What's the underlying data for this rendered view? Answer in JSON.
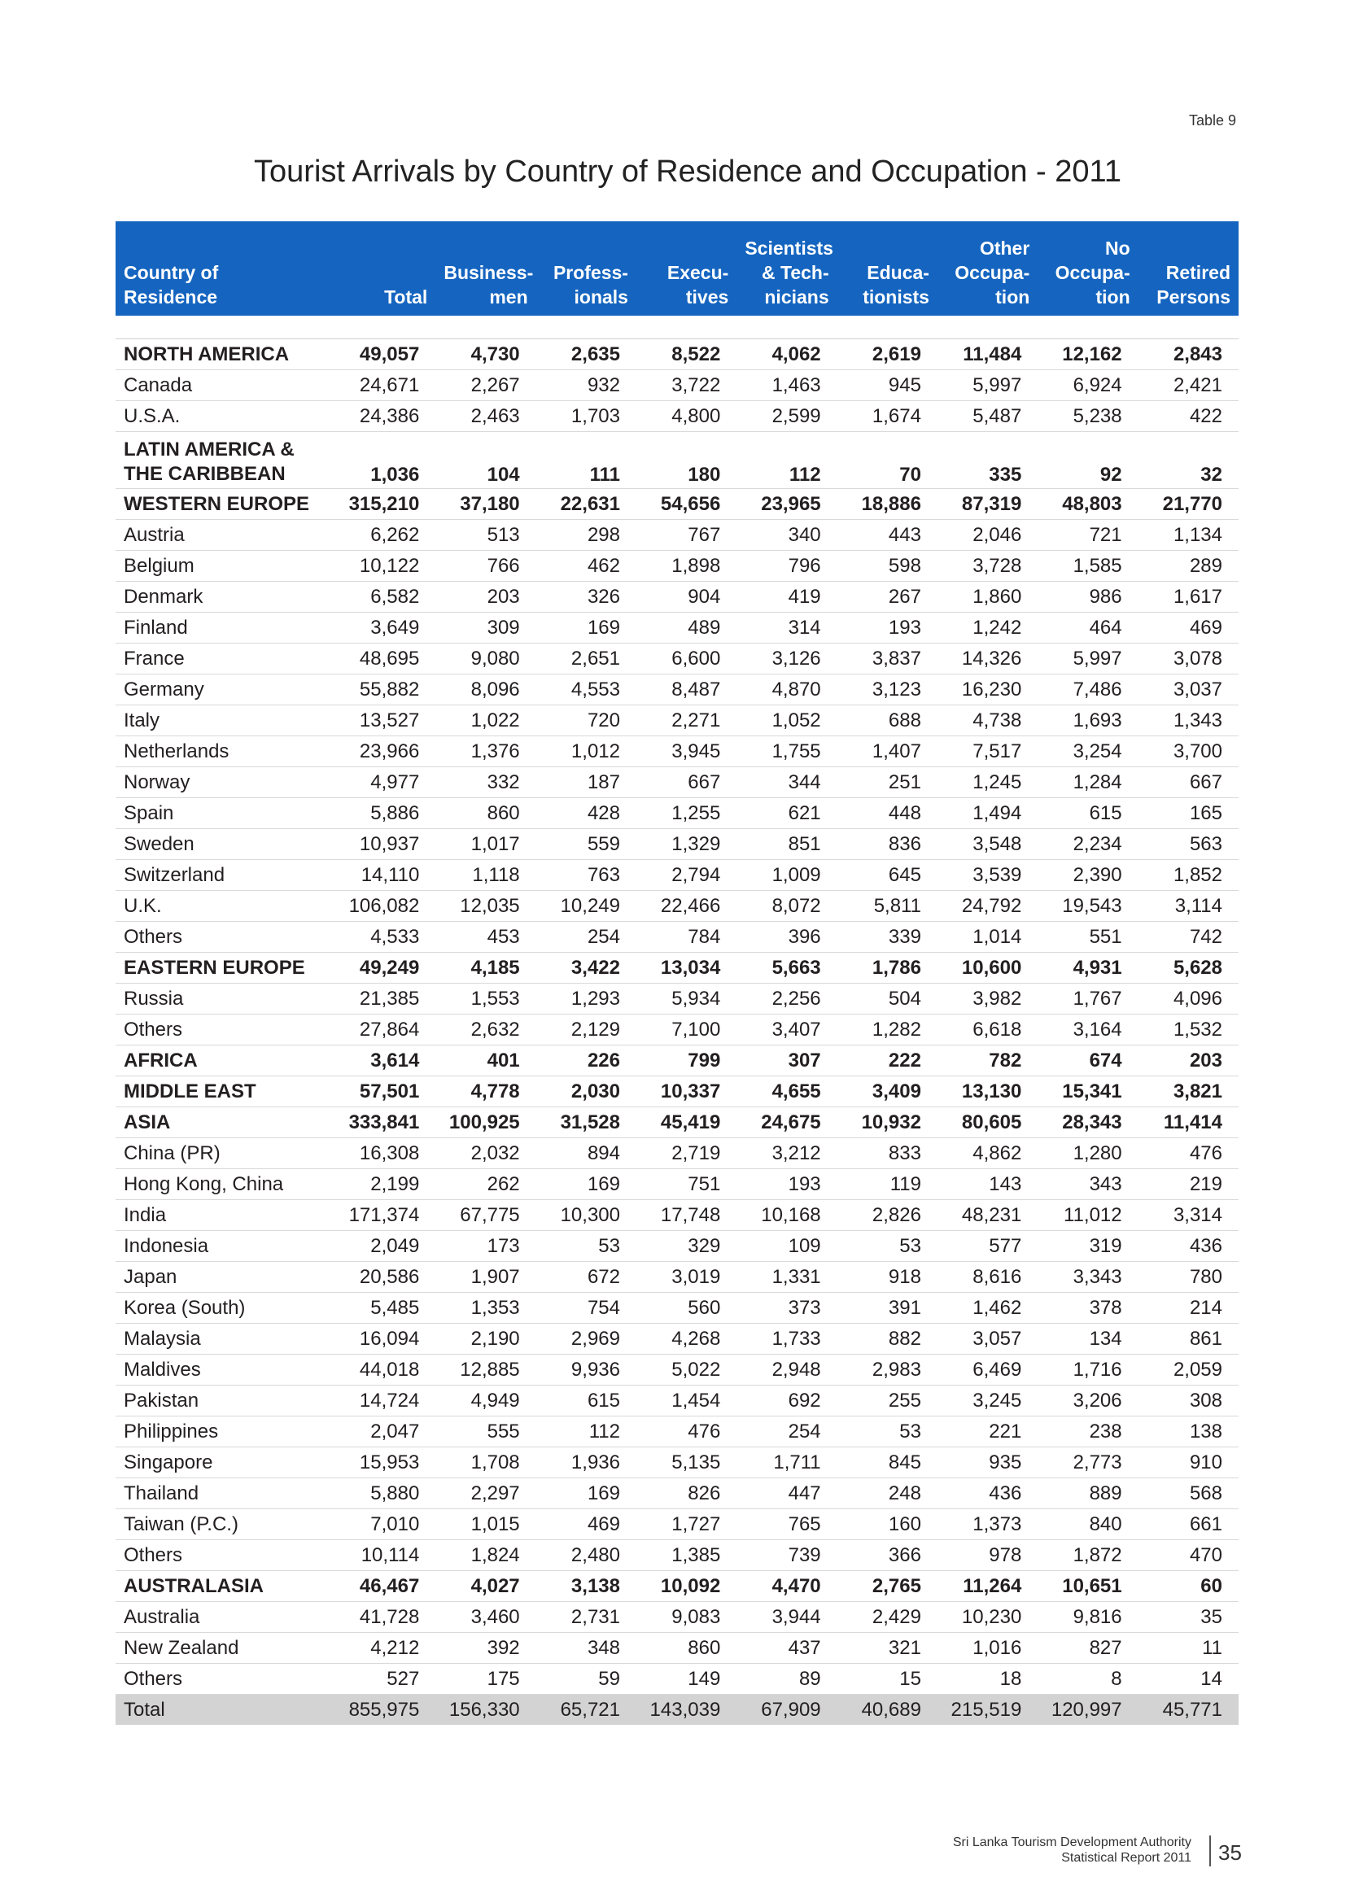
{
  "table_label": "Table 9",
  "title": "Tourist Arrivals by Country of Residence and Occupation - 2011",
  "headers": [
    [
      "Country of",
      "Residence"
    ],
    [
      "Total"
    ],
    [
      "Business-",
      "men"
    ],
    [
      "Profess-",
      "ionals"
    ],
    [
      "Execu-",
      "tives"
    ],
    [
      "Scientists",
      "& Tech-",
      "nicians"
    ],
    [
      "Educa-",
      "tionists"
    ],
    [
      "Other",
      "Occupa-",
      "tion"
    ],
    [
      "No",
      "Occupa-",
      "tion"
    ],
    [
      "Retired",
      "Persons"
    ]
  ],
  "rows": [
    {
      "type": "region",
      "name": "NORTH AMERICA",
      "values": [
        "49,057",
        "4,730",
        "2,635",
        "8,522",
        "4,062",
        "2,619",
        "11,484",
        "12,162",
        "2,843"
      ]
    },
    {
      "type": "country",
      "name": "Canada",
      "values": [
        "24,671",
        "2,267",
        "932",
        "3,722",
        "1,463",
        "945",
        "5,997",
        "6,924",
        "2,421"
      ]
    },
    {
      "type": "country",
      "name": "U.S.A.",
      "values": [
        "24,386",
        "2,463",
        "1,703",
        "4,800",
        "2,599",
        "1,674",
        "5,487",
        "5,238",
        "422"
      ]
    },
    {
      "type": "region",
      "name": [
        "LATIN AMERICA &",
        "THE CARIBBEAN"
      ],
      "values": [
        "1,036",
        "104",
        "111",
        "180",
        "112",
        "70",
        "335",
        "92",
        "32"
      ]
    },
    {
      "type": "region",
      "name": "WESTERN EUROPE",
      "values": [
        "315,210",
        "37,180",
        "22,631",
        "54,656",
        "23,965",
        "18,886",
        "87,319",
        "48,803",
        "21,770"
      ]
    },
    {
      "type": "country",
      "name": "Austria",
      "values": [
        "6,262",
        "513",
        "298",
        "767",
        "340",
        "443",
        "2,046",
        "721",
        "1,134"
      ]
    },
    {
      "type": "country",
      "name": "Belgium",
      "values": [
        "10,122",
        "766",
        "462",
        "1,898",
        "796",
        "598",
        "3,728",
        "1,585",
        "289"
      ]
    },
    {
      "type": "country",
      "name": "Denmark",
      "values": [
        "6,582",
        "203",
        "326",
        "904",
        "419",
        "267",
        "1,860",
        "986",
        "1,617"
      ]
    },
    {
      "type": "country",
      "name": "Finland",
      "values": [
        "3,649",
        "309",
        "169",
        "489",
        "314",
        "193",
        "1,242",
        "464",
        "469"
      ]
    },
    {
      "type": "country",
      "name": "France",
      "values": [
        "48,695",
        "9,080",
        "2,651",
        "6,600",
        "3,126",
        "3,837",
        "14,326",
        "5,997",
        "3,078"
      ]
    },
    {
      "type": "country",
      "name": "Germany",
      "values": [
        "55,882",
        "8,096",
        "4,553",
        "8,487",
        "4,870",
        "3,123",
        "16,230",
        "7,486",
        "3,037"
      ]
    },
    {
      "type": "country",
      "name": "Italy",
      "values": [
        "13,527",
        "1,022",
        "720",
        "2,271",
        "1,052",
        "688",
        "4,738",
        "1,693",
        "1,343"
      ]
    },
    {
      "type": "country",
      "name": "Netherlands",
      "values": [
        "23,966",
        "1,376",
        "1,012",
        "3,945",
        "1,755",
        "1,407",
        "7,517",
        "3,254",
        "3,700"
      ]
    },
    {
      "type": "country",
      "name": "Norway",
      "values": [
        "4,977",
        "332",
        "187",
        "667",
        "344",
        "251",
        "1,245",
        "1,284",
        "667"
      ]
    },
    {
      "type": "country",
      "name": "Spain",
      "values": [
        "5,886",
        "860",
        "428",
        "1,255",
        "621",
        "448",
        "1,494",
        "615",
        "165"
      ]
    },
    {
      "type": "country",
      "name": "Sweden",
      "values": [
        "10,937",
        "1,017",
        "559",
        "1,329",
        "851",
        "836",
        "3,548",
        "2,234",
        "563"
      ]
    },
    {
      "type": "country",
      "name": "Switzerland",
      "values": [
        "14,110",
        "1,118",
        "763",
        "2,794",
        "1,009",
        "645",
        "3,539",
        "2,390",
        "1,852"
      ]
    },
    {
      "type": "country",
      "name": "U.K.",
      "values": [
        "106,082",
        "12,035",
        "10,249",
        "22,466",
        "8,072",
        "5,811",
        "24,792",
        "19,543",
        "3,114"
      ]
    },
    {
      "type": "country",
      "name": "Others",
      "values": [
        "4,533",
        "453",
        "254",
        "784",
        "396",
        "339",
        "1,014",
        "551",
        "742"
      ]
    },
    {
      "type": "region",
      "name": "EASTERN EUROPE",
      "values": [
        "49,249",
        "4,185",
        "3,422",
        "13,034",
        "5,663",
        "1,786",
        "10,600",
        "4,931",
        "5,628"
      ]
    },
    {
      "type": "country",
      "name": "Russia",
      "values": [
        "21,385",
        "1,553",
        "1,293",
        "5,934",
        "2,256",
        "504",
        "3,982",
        "1,767",
        "4,096"
      ]
    },
    {
      "type": "country",
      "name": "Others",
      "values": [
        "27,864",
        "2,632",
        "2,129",
        "7,100",
        "3,407",
        "1,282",
        "6,618",
        "3,164",
        "1,532"
      ]
    },
    {
      "type": "region",
      "name": "AFRICA",
      "values": [
        "3,614",
        "401",
        "226",
        "799",
        "307",
        "222",
        "782",
        "674",
        "203"
      ]
    },
    {
      "type": "region",
      "name": "MIDDLE EAST",
      "values": [
        "57,501",
        "4,778",
        "2,030",
        "10,337",
        "4,655",
        "3,409",
        "13,130",
        "15,341",
        "3,821"
      ]
    },
    {
      "type": "region",
      "name": "ASIA",
      "values": [
        "333,841",
        "100,925",
        "31,528",
        "45,419",
        "24,675",
        "10,932",
        "80,605",
        "28,343",
        "11,414"
      ]
    },
    {
      "type": "country",
      "name": "China (PR)",
      "values": [
        "16,308",
        "2,032",
        "894",
        "2,719",
        "3,212",
        "833",
        "4,862",
        "1,280",
        "476"
      ]
    },
    {
      "type": "country",
      "name": "Hong Kong, China",
      "values": [
        "2,199",
        "262",
        "169",
        "751",
        "193",
        "119",
        "143",
        "343",
        "219"
      ]
    },
    {
      "type": "country",
      "name": "India",
      "values": [
        "171,374",
        "67,775",
        "10,300",
        "17,748",
        "10,168",
        "2,826",
        "48,231",
        "11,012",
        "3,314"
      ]
    },
    {
      "type": "country",
      "name": "Indonesia",
      "values": [
        "2,049",
        "173",
        "53",
        "329",
        "109",
        "53",
        "577",
        "319",
        "436"
      ]
    },
    {
      "type": "country",
      "name": "Japan",
      "values": [
        "20,586",
        "1,907",
        "672",
        "3,019",
        "1,331",
        "918",
        "8,616",
        "3,343",
        "780"
      ]
    },
    {
      "type": "country",
      "name": "Korea (South)",
      "values": [
        "5,485",
        "1,353",
        "754",
        "560",
        "373",
        "391",
        "1,462",
        "378",
        "214"
      ]
    },
    {
      "type": "country",
      "name": "Malaysia",
      "values": [
        "16,094",
        "2,190",
        "2,969",
        "4,268",
        "1,733",
        "882",
        "3,057",
        "134",
        "861"
      ]
    },
    {
      "type": "country",
      "name": "Maldives",
      "values": [
        "44,018",
        "12,885",
        "9,936",
        "5,022",
        "2,948",
        "2,983",
        "6,469",
        "1,716",
        "2,059"
      ]
    },
    {
      "type": "country",
      "name": "Pakistan",
      "values": [
        "14,724",
        "4,949",
        "615",
        "1,454",
        "692",
        "255",
        "3,245",
        "3,206",
        "308"
      ]
    },
    {
      "type": "country",
      "name": "Philippines",
      "values": [
        "2,047",
        "555",
        "112",
        "476",
        "254",
        "53",
        "221",
        "238",
        "138"
      ]
    },
    {
      "type": "country",
      "name": "Singapore",
      "values": [
        "15,953",
        "1,708",
        "1,936",
        "5,135",
        "1,711",
        "845",
        "935",
        "2,773",
        "910"
      ]
    },
    {
      "type": "country",
      "name": "Thailand",
      "values": [
        "5,880",
        "2,297",
        "169",
        "826",
        "447",
        "248",
        "436",
        "889",
        "568"
      ]
    },
    {
      "type": "country",
      "name": "Taiwan (P.C.)",
      "values": [
        "7,010",
        "1,015",
        "469",
        "1,727",
        "765",
        "160",
        "1,373",
        "840",
        "661"
      ]
    },
    {
      "type": "country",
      "name": "Others",
      "values": [
        "10,114",
        "1,824",
        "2,480",
        "1,385",
        "739",
        "366",
        "978",
        "1,872",
        "470"
      ]
    },
    {
      "type": "region",
      "name": "AUSTRALASIA",
      "values": [
        "46,467",
        "4,027",
        "3,138",
        "10,092",
        "4,470",
        "2,765",
        "11,264",
        "10,651",
        "60"
      ]
    },
    {
      "type": "country",
      "name": "Australia",
      "values": [
        "41,728",
        "3,460",
        "2,731",
        "9,083",
        "3,944",
        "2,429",
        "10,230",
        "9,816",
        "35"
      ]
    },
    {
      "type": "country",
      "name": "New Zealand",
      "values": [
        "4,212",
        "392",
        "348",
        "860",
        "437",
        "321",
        "1,016",
        "827",
        "11"
      ]
    },
    {
      "type": "country",
      "name": "Others",
      "values": [
        "527",
        "175",
        "59",
        "149",
        "89",
        "15",
        "18",
        "8",
        "14"
      ]
    },
    {
      "type": "total",
      "name": "Total",
      "values": [
        "855,975",
        "156,330",
        "65,721",
        "143,039",
        "67,909",
        "40,689",
        "215,519",
        "120,997",
        "45,771"
      ]
    }
  ],
  "footer": {
    "org": "Sri Lanka Tourism Development Authority",
    "report": "Statistical Report 2011",
    "page_number": "35"
  },
  "colors": {
    "header_bg": "#1565c0",
    "header_text": "#ffffff",
    "total_row_bg": "#d3d3d3"
  }
}
